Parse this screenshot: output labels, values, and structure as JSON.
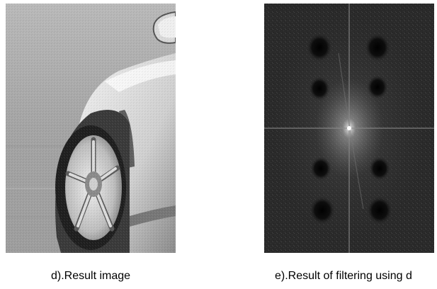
{
  "figure": {
    "left_caption": "d).Result image",
    "right_caption": "e).Result of filtering using d",
    "left_image_icon": "grayscale-car-wheel-photo",
    "right_image_icon": "fourier-spectrum-with-dark-notches",
    "colors": {
      "background": "#ffffff",
      "spectrum_background": "#2a2a2a",
      "photo_background": "#a9a9a9"
    }
  }
}
